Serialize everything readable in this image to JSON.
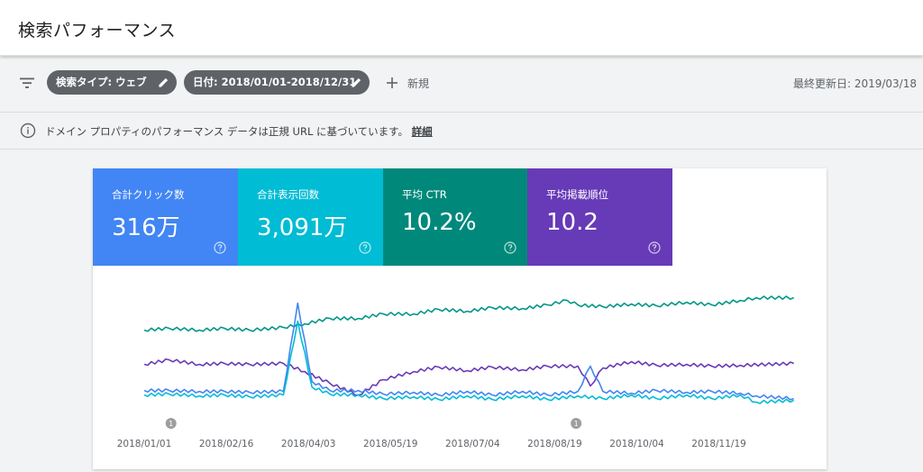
{
  "header": {
    "title": "検索パフォーマンス"
  },
  "toolbar": {
    "chips": [
      {
        "label": "検索タイプ: ウェブ"
      },
      {
        "label": "日付: 2018/01/01-2018/12/31"
      }
    ],
    "new_label": "新規",
    "last_updated": "最終更新日: 2019/03/18"
  },
  "notice": {
    "text": "ドメイン プロパティのパフォーマンス データは正規 URL に基づいています。",
    "link": "詳細"
  },
  "metrics": [
    {
      "label": "合計クリック数",
      "value": "316万",
      "color": "#4285f4"
    },
    {
      "label": "合計表示回数",
      "value": "3,091万",
      "color": "#00bcd4"
    },
    {
      "label": "平均 CTR",
      "value": "10.2%",
      "color": "#00897b"
    },
    {
      "label": "平均掲載順位",
      "value": "10.2",
      "color": "#673ab7"
    }
  ],
  "chart_data": {
    "type": "line",
    "x_ticks": [
      "2018/01/01",
      "2018/02/16",
      "2018/04/03",
      "2018/05/19",
      "2018/07/04",
      "2018/08/19",
      "2018/10/04",
      "2018/11/19"
    ],
    "x_range": [
      "2018/01/01",
      "2018/12/31"
    ],
    "grid": false,
    "y_axis_labels": false,
    "annotations": [
      {
        "date": "2018/01/16",
        "label": "1"
      },
      {
        "date": "2018/08/31",
        "label": "1"
      }
    ],
    "series": [
      {
        "metric": "平均 CTR",
        "color": "#009688",
        "x": [
          "2018/01/01",
          "2018/01/15",
          "2018/02/01",
          "2018/02/15",
          "2018/03/01",
          "2018/03/20",
          "2018/04/01",
          "2018/04/15",
          "2018/05/01",
          "2018/05/15",
          "2018/06/01",
          "2018/06/15",
          "2018/07/01",
          "2018/07/15",
          "2018/08/01",
          "2018/08/15",
          "2018/08/26",
          "2018/09/01",
          "2018/09/15",
          "2018/10/01",
          "2018/10/15",
          "2018/11/01",
          "2018/11/15",
          "2018/12/01",
          "2018/12/10",
          "2018/12/31"
        ],
        "values": [
          70,
          71,
          70,
          71,
          70,
          70,
          63,
          60,
          57,
          55,
          52,
          50,
          49,
          48,
          46,
          45,
          37,
          45,
          44,
          44,
          43,
          42,
          42,
          40,
          34,
          37
        ]
      },
      {
        "metric": "平均掲載順位",
        "color": "#673ab7",
        "x": [
          "2018/01/01",
          "2018/01/15",
          "2018/02/01",
          "2018/02/15",
          "2018/03/01",
          "2018/03/20",
          "2018/04/01",
          "2018/04/15",
          "2018/05/01",
          "2018/05/15",
          "2018/06/01",
          "2018/06/15",
          "2018/07/01",
          "2018/07/15",
          "2018/08/01",
          "2018/08/15",
          "2018/09/01",
          "2018/09/08",
          "2018/09/15",
          "2018/10/01",
          "2018/10/15",
          "2018/11/01",
          "2018/11/15",
          "2018/12/01",
          "2018/12/31"
        ],
        "values": [
          108,
          106,
          108,
          110,
          108,
          110,
          116,
          132,
          142,
          128,
          116,
          114,
          115,
          114,
          114,
          113,
          110,
          135,
          112,
          108,
          109,
          111,
          110,
          112,
          107
        ]
      },
      {
        "metric": "合計クリック数",
        "color": "#4285f4",
        "x": [
          "2018/01/01",
          "2018/01/15",
          "2018/02/01",
          "2018/02/15",
          "2018/03/01",
          "2018/03/20",
          "2018/03/28",
          "2018/04/05",
          "2018/04/15",
          "2018/05/01",
          "2018/05/15",
          "2018/06/01",
          "2018/06/15",
          "2018/07/01",
          "2018/07/15",
          "2018/08/01",
          "2018/08/15",
          "2018/09/01",
          "2018/09/08",
          "2018/09/15",
          "2018/10/01",
          "2018/10/15",
          "2018/11/01",
          "2018/11/15",
          "2018/12/01",
          "2018/12/10",
          "2018/12/31"
        ],
        "values": [
          137,
          140,
          138,
          141,
          139,
          141,
          40,
          130,
          137,
          140,
          141,
          142,
          142,
          141,
          142,
          141,
          142,
          141,
          110,
          141,
          140,
          140,
          139,
          141,
          140,
          146,
          146
        ]
      },
      {
        "metric": "合計表示回数",
        "color": "#00bcd4",
        "x": [
          "2018/01/01",
          "2018/01/15",
          "2018/02/01",
          "2018/02/15",
          "2018/03/01",
          "2018/03/20",
          "2018/03/28",
          "2018/04/05",
          "2018/04/15",
          "2018/05/01",
          "2018/05/15",
          "2018/06/01",
          "2018/06/15",
          "2018/07/01",
          "2018/07/15",
          "2018/08/01",
          "2018/08/15",
          "2018/09/01",
          "2018/09/15",
          "2018/10/01",
          "2018/10/15",
          "2018/11/01",
          "2018/11/15",
          "2018/12/01",
          "2018/12/10",
          "2018/12/31"
        ],
        "values": [
          142,
          144,
          143,
          145,
          144,
          145,
          60,
          136,
          141,
          145,
          146,
          147,
          147,
          146,
          147,
          146,
          147,
          146,
          146,
          145,
          146,
          145,
          146,
          145,
          150,
          151
        ]
      }
    ]
  }
}
